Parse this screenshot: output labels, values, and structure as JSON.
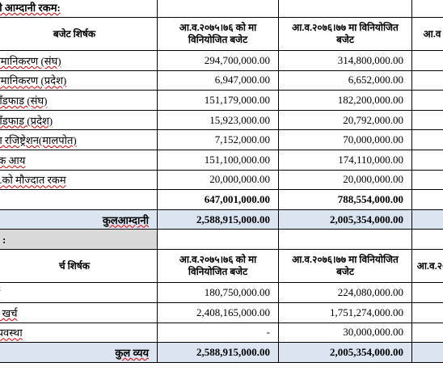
{
  "income": {
    "title": "नी आम्दानी रकम:",
    "header": [
      "बजेट शिर्षक",
      "आ.व.२०७५।७६ को मा विनियोजित बजेट",
      "आ.व.२०७६।७७ मा विनियोजित बजेट",
      "आ.व"
    ],
    "rows": [
      {
        "label": "समानिकरण (संघ)",
        "values": [
          "294,700,000.00",
          "314,800,000.00"
        ]
      },
      {
        "label": "समानिकरण (प्रदेश)",
        "values": [
          "6,947,000.00",
          "6,652,000.00"
        ]
      },
      {
        "label": "बाँडफाड (संघ)",
        "values": [
          "151,179,000.00",
          "182,200,000.00"
        ]
      },
      {
        "label": "बाँडफाड (प्रदेश)",
        "values": [
          "15,923,000.00",
          "20,792,000.00"
        ]
      },
      {
        "label": "गा रजिष्ट्रेशन(मालपोत)",
        "values": [
          "7,152,000.00",
          "70,000,000.00"
        ]
      },
      {
        "label": "रक आय",
        "values": [
          "151,100,000.00",
          "174,110,000.00"
        ]
      },
      {
        "label": "व.को मौज्दात रकम",
        "values": [
          "20,000,000.00",
          "20,000,000.00"
        ]
      }
    ],
    "subtotal": {
      "values": [
        "647,001,000.00",
        "788,554,000.00"
      ]
    },
    "total": {
      "label": "कुलआम्दानी",
      "values": [
        "2,588,915,000.00",
        "2,005,354,000.00"
      ]
    }
  },
  "expense": {
    "title": "ं :",
    "header": [
      "र्च शिर्षक",
      "आ.व.२०७५।७६ को मा विनियोजित बजेट",
      "आ.व.२०७६।७७ मा विनियोजित बजेट",
      "आ.व.२०"
    ],
    "rows": [
      {
        "label": "र्च",
        "values": [
          "180,750,000.00",
          "224,080,000.00"
        ]
      },
      {
        "label": "त खर्च",
        "values": [
          "2,408,165,000.00",
          "1,751,274,000.00"
        ]
      },
      {
        "label": "व्यवस्था",
        "values": [
          "-",
          "30,000,000.00"
        ]
      }
    ],
    "total": {
      "label": "कुल व्यय",
      "values": [
        "2,588,915,000.00",
        "2,005,354,000.00"
      ]
    }
  }
}
